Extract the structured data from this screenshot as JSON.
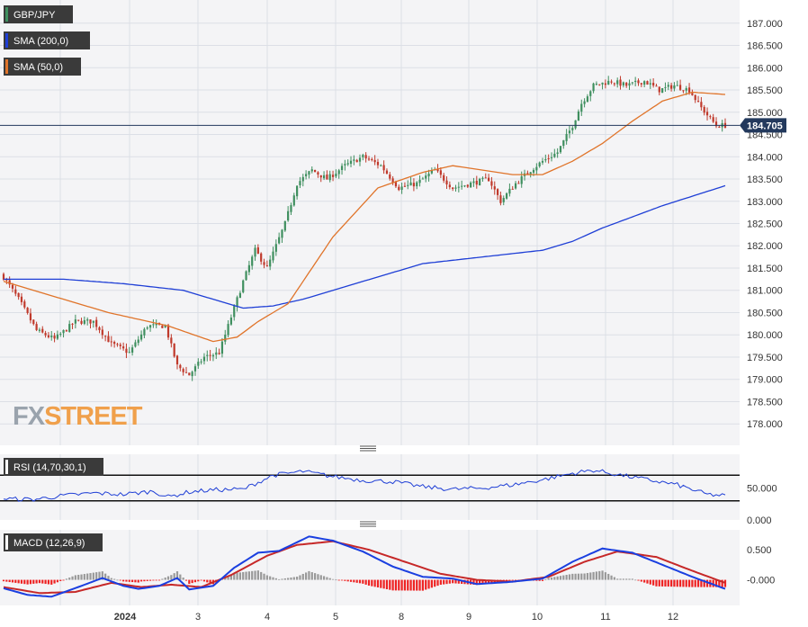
{
  "colors": {
    "background": "#f4f4f6",
    "grid": "#dcdfe6",
    "candle_up": "#3f8f5f",
    "candle_down": "#c0392b",
    "sma200": "#1f3fd6",
    "sma50": "#e0742a",
    "rsi": "#1f3fd6",
    "macd_line": "#1a3fe0",
    "signal_line": "#c62828",
    "hist_pos": "#999999",
    "hist_neg": "#ee2222",
    "price_tag": "#23395d",
    "legend_bg": "#3a3a3a",
    "wm_fx": "#9aa3ad",
    "wm_street": "#f0a04b"
  },
  "watermark": {
    "fx": "FX",
    "street": "STREET"
  },
  "price_panel": {
    "legend": [
      {
        "label": "GBP/JPY",
        "swatch": "#3f8f5f"
      },
      {
        "label": "SMA (200,0)",
        "swatch": "#1f3fd6"
      },
      {
        "label": "SMA (50,0)",
        "swatch": "#e0742a"
      }
    ],
    "y_ticks": [
      "187.000",
      "186.500",
      "186.000",
      "185.500",
      "185.000",
      "184.500",
      "184.000",
      "183.500",
      "183.000",
      "182.500",
      "182.000",
      "181.500",
      "181.000",
      "180.500",
      "180.000",
      "179.500",
      "179.000",
      "178.500",
      "178.000"
    ],
    "last_price": "184.705"
  },
  "rsi_panel": {
    "label": "RSI (14,70,30,1)",
    "y_ticks": [
      "50.000",
      "0.000"
    ]
  },
  "macd_panel": {
    "label": "MACD (12,26,9)",
    "y_ticks": [
      "0.500",
      "-0.000"
    ]
  },
  "x_labels": [
    "2024",
    "3",
    "4",
    "5",
    "8",
    "9",
    "10",
    "11",
    "12"
  ],
  "chart_data": [
    {
      "type": "candlestick",
      "title": "GBP/JPY",
      "ylim": [
        177.6,
        187.4
      ],
      "legend_position": "top-left",
      "grid": true,
      "close_keypoints": [
        [
          0,
          181.3
        ],
        [
          5,
          180.8
        ],
        [
          11,
          180.1
        ],
        [
          17,
          179.9
        ],
        [
          24,
          180.3
        ],
        [
          30,
          180.3
        ],
        [
          36,
          179.8
        ],
        [
          42,
          179.6
        ],
        [
          48,
          180.2
        ],
        [
          54,
          180.2
        ],
        [
          58,
          179.3
        ],
        [
          62,
          179.1
        ],
        [
          67,
          179.5
        ],
        [
          72,
          179.6
        ],
        [
          76,
          180.4
        ],
        [
          80,
          181.2
        ],
        [
          84,
          181.9
        ],
        [
          88,
          181.5
        ],
        [
          94,
          182.5
        ],
        [
          98,
          183.4
        ],
        [
          103,
          183.7
        ],
        [
          108,
          183.5
        ],
        [
          114,
          183.8
        ],
        [
          120,
          184.0
        ],
        [
          126,
          183.8
        ],
        [
          132,
          183.3
        ],
        [
          138,
          183.4
        ],
        [
          144,
          183.7
        ],
        [
          150,
          183.3
        ],
        [
          156,
          183.4
        ],
        [
          162,
          183.5
        ],
        [
          166,
          183.0
        ],
        [
          171,
          183.4
        ],
        [
          176,
          183.7
        ],
        [
          180,
          183.9
        ],
        [
          185,
          184.1
        ],
        [
          190,
          184.7
        ],
        [
          193,
          185.2
        ],
        [
          197,
          185.6
        ],
        [
          203,
          185.7
        ],
        [
          208,
          185.6
        ],
        [
          214,
          185.7
        ],
        [
          219,
          185.5
        ],
        [
          224,
          185.6
        ],
        [
          229,
          185.5
        ],
        [
          233,
          185.1
        ],
        [
          238,
          184.7
        ],
        [
          241,
          184.705
        ]
      ],
      "sma200_keypoints": [
        [
          0,
          181.25
        ],
        [
          20,
          181.25
        ],
        [
          40,
          181.15
        ],
        [
          60,
          181.0
        ],
        [
          70,
          180.8
        ],
        [
          80,
          180.6
        ],
        [
          90,
          180.65
        ],
        [
          100,
          180.8
        ],
        [
          120,
          181.2
        ],
        [
          140,
          181.6
        ],
        [
          160,
          181.75
        ],
        [
          180,
          181.9
        ],
        [
          190,
          182.1
        ],
        [
          200,
          182.4
        ],
        [
          220,
          182.9
        ],
        [
          241,
          183.35
        ]
      ],
      "sma50_keypoints": [
        [
          0,
          181.2
        ],
        [
          15,
          180.9
        ],
        [
          35,
          180.5
        ],
        [
          55,
          180.2
        ],
        [
          70,
          179.85
        ],
        [
          78,
          179.95
        ],
        [
          85,
          180.3
        ],
        [
          95,
          180.7
        ],
        [
          100,
          181.2
        ],
        [
          110,
          182.2
        ],
        [
          125,
          183.3
        ],
        [
          140,
          183.65
        ],
        [
          150,
          183.8
        ],
        [
          160,
          183.7
        ],
        [
          170,
          183.6
        ],
        [
          180,
          183.6
        ],
        [
          190,
          183.9
        ],
        [
          200,
          184.3
        ],
        [
          210,
          184.8
        ],
        [
          220,
          185.25
        ],
        [
          230,
          185.45
        ],
        [
          241,
          185.4
        ]
      ]
    },
    {
      "type": "line",
      "title": "RSI (14,70,30,1)",
      "ylim": [
        0,
        100
      ],
      "levels": [
        70,
        30
      ],
      "keypoints": [
        [
          0,
          33
        ],
        [
          10,
          32
        ],
        [
          20,
          38
        ],
        [
          30,
          42
        ],
        [
          40,
          40
        ],
        [
          50,
          45
        ],
        [
          55,
          36
        ],
        [
          62,
          44
        ],
        [
          70,
          47
        ],
        [
          80,
          48
        ],
        [
          90,
          70
        ],
        [
          100,
          76
        ],
        [
          110,
          68
        ],
        [
          120,
          62
        ],
        [
          130,
          60
        ],
        [
          140,
          52
        ],
        [
          150,
          48
        ],
        [
          160,
          50
        ],
        [
          170,
          55
        ],
        [
          180,
          63
        ],
        [
          190,
          73
        ],
        [
          197,
          78
        ],
        [
          205,
          71
        ],
        [
          215,
          63
        ],
        [
          225,
          55
        ],
        [
          235,
          40
        ],
        [
          241,
          38
        ]
      ]
    },
    {
      "type": "line",
      "title": "MACD (12,26,9)",
      "ylim": [
        -0.35,
        0.8
      ],
      "macd_keypoints": [
        [
          0,
          -0.14
        ],
        [
          8,
          -0.25
        ],
        [
          16,
          -0.28
        ],
        [
          26,
          -0.1
        ],
        [
          33,
          0.03
        ],
        [
          40,
          -0.1
        ],
        [
          45,
          -0.15
        ],
        [
          52,
          -0.1
        ],
        [
          58,
          0.03
        ],
        [
          62,
          -0.16
        ],
        [
          70,
          -0.1
        ],
        [
          77,
          0.2
        ],
        [
          85,
          0.45
        ],
        [
          92,
          0.48
        ],
        [
          102,
          0.72
        ],
        [
          110,
          0.65
        ],
        [
          120,
          0.47
        ],
        [
          130,
          0.22
        ],
        [
          140,
          0.05
        ],
        [
          150,
          0.02
        ],
        [
          158,
          -0.07
        ],
        [
          168,
          -0.04
        ],
        [
          180,
          0.02
        ],
        [
          190,
          0.3
        ],
        [
          200,
          0.52
        ],
        [
          210,
          0.45
        ],
        [
          220,
          0.25
        ],
        [
          230,
          0.05
        ],
        [
          241,
          -0.15
        ]
      ],
      "signal_keypoints": [
        [
          0,
          -0.12
        ],
        [
          12,
          -0.22
        ],
        [
          24,
          -0.2
        ],
        [
          36,
          -0.05
        ],
        [
          46,
          -0.12
        ],
        [
          56,
          -0.08
        ],
        [
          66,
          -0.12
        ],
        [
          76,
          0.08
        ],
        [
          88,
          0.4
        ],
        [
          98,
          0.58
        ],
        [
          110,
          0.64
        ],
        [
          122,
          0.5
        ],
        [
          134,
          0.3
        ],
        [
          146,
          0.1
        ],
        [
          158,
          0.0
        ],
        [
          170,
          -0.03
        ],
        [
          182,
          0.05
        ],
        [
          194,
          0.3
        ],
        [
          205,
          0.47
        ],
        [
          218,
          0.38
        ],
        [
          230,
          0.15
        ],
        [
          241,
          -0.05
        ]
      ]
    }
  ]
}
